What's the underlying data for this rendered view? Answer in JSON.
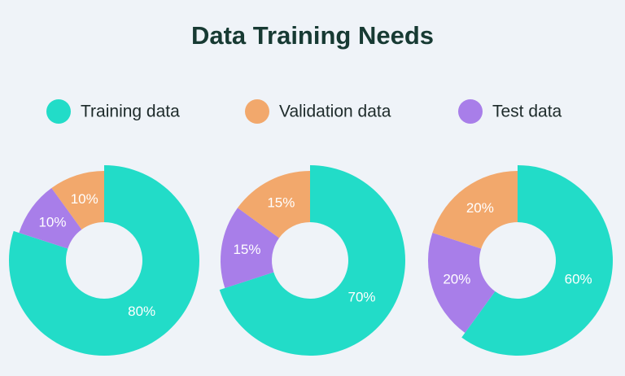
{
  "title": "Data Training Needs",
  "legend": [
    {
      "name": "Training data",
      "color": "#22dcc8"
    },
    {
      "name": "Validation data",
      "color": "#f2a86c"
    },
    {
      "name": "Test data",
      "color": "#a87ee9"
    }
  ],
  "chart_data": [
    {
      "type": "donut",
      "values": [
        80,
        10,
        10
      ],
      "value_labels": [
        "80%",
        "10%",
        "10%"
      ]
    },
    {
      "type": "donut",
      "values": [
        70,
        15,
        15
      ],
      "value_labels": [
        "70%",
        "15%",
        "15%"
      ]
    },
    {
      "type": "donut",
      "values": [
        60,
        20,
        20
      ],
      "value_labels": [
        "60%",
        "20%",
        "20%"
      ]
    }
  ]
}
